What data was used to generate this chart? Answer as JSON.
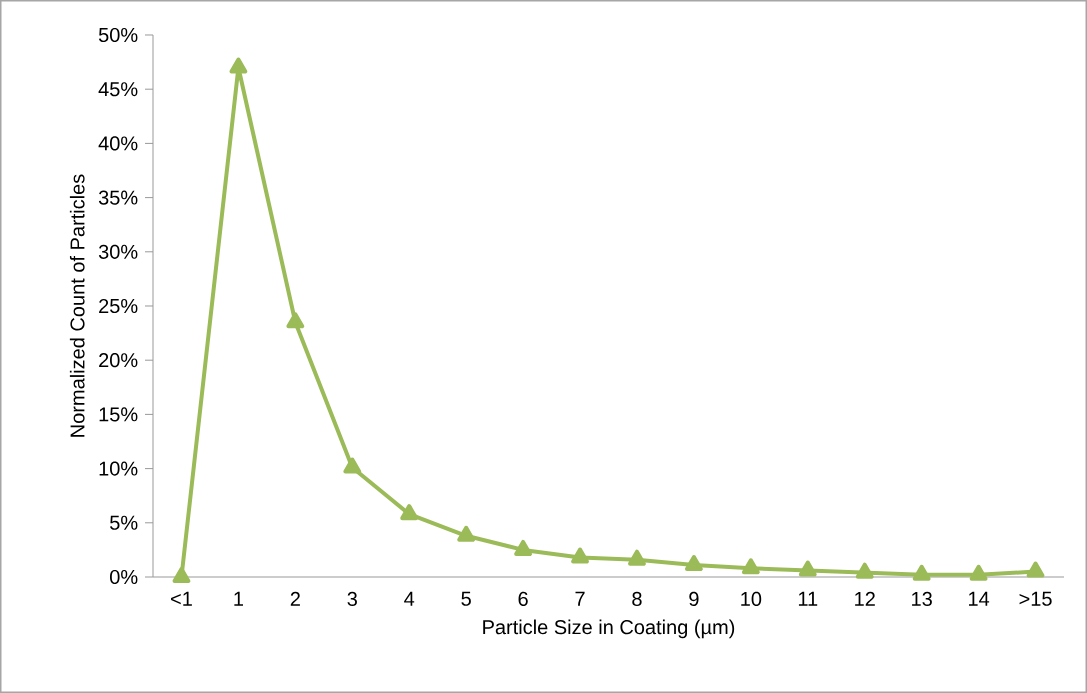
{
  "chart_data": {
    "type": "line",
    "xlabel": "Particle Size in Coating (µm)",
    "ylabel": "Normalized Count of Particles",
    "categories": [
      "<1",
      "1",
      "2",
      "3",
      "4",
      "5",
      "6",
      "7",
      "8",
      "9",
      "10",
      "11",
      "12",
      "13",
      "14",
      ">15"
    ],
    "series": [
      {
        "color": "#9bbb59",
        "values": [
          0,
          47,
          23.5,
          10.1,
          5.8,
          3.8,
          2.5,
          1.8,
          1.6,
          1.1,
          0.8,
          0.6,
          0.4,
          0.2,
          0.2,
          0.5
        ]
      }
    ],
    "ylim": [
      0,
      50
    ],
    "yticks": [
      {
        "value": 0,
        "label": "0%"
      },
      {
        "value": 5,
        "label": "5%"
      },
      {
        "value": 10,
        "label": "10%"
      },
      {
        "value": 15,
        "label": "15%"
      },
      {
        "value": 20,
        "label": "20%"
      },
      {
        "value": 25,
        "label": "25%"
      },
      {
        "value": 30,
        "label": "30%"
      },
      {
        "value": 35,
        "label": "35%"
      },
      {
        "value": 40,
        "label": "40%"
      },
      {
        "value": 45,
        "label": "45%"
      },
      {
        "value": 50,
        "label": "50%"
      }
    ],
    "marker": "triangle",
    "line_style": "solid"
  }
}
